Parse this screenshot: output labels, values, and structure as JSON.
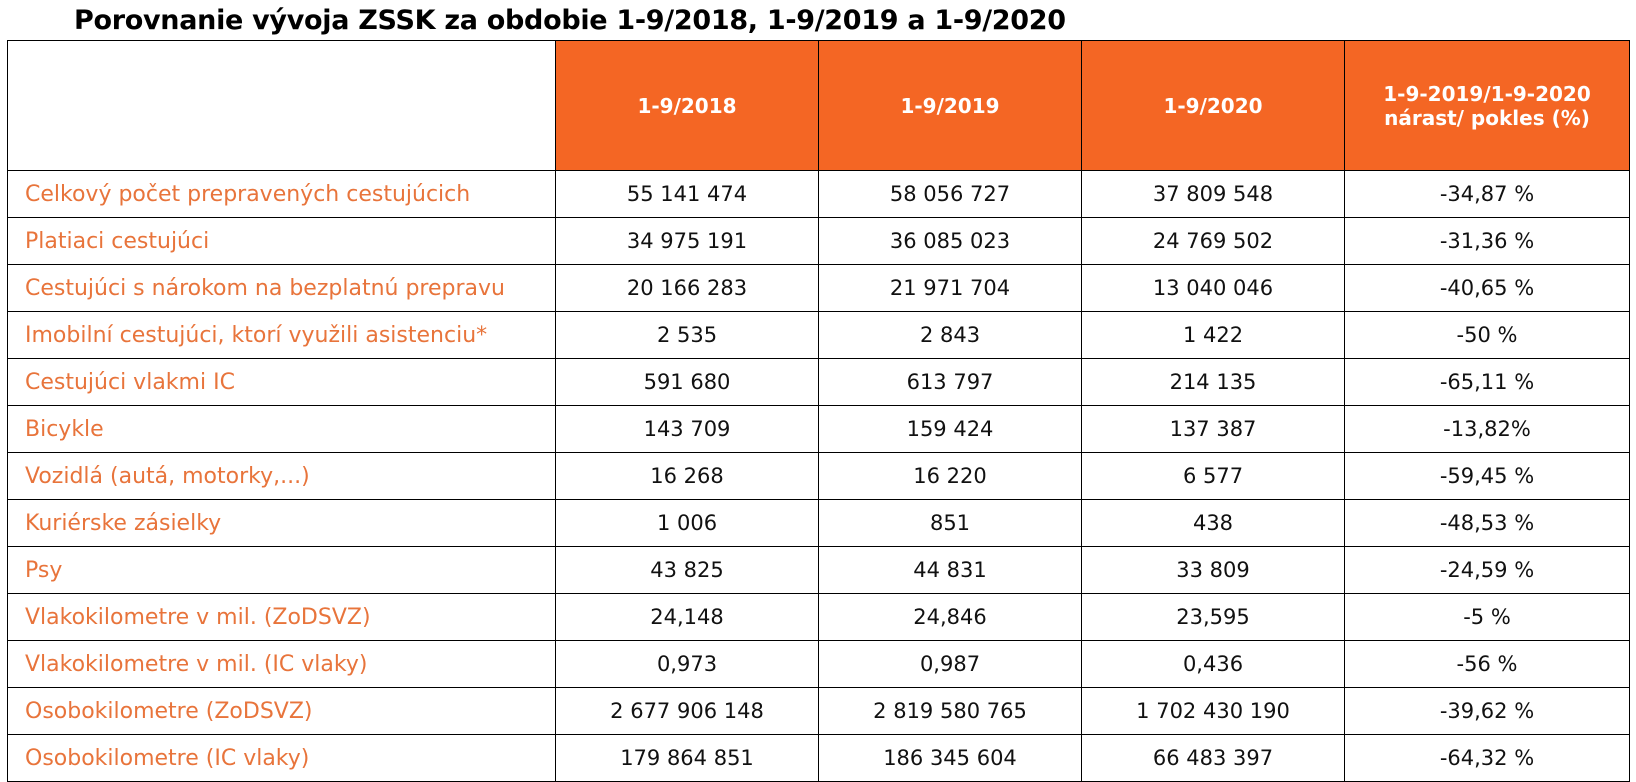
{
  "title": "Porovnanie vývoja ZSSK za obdobie 1-9/2018, 1-9/2019 a 1-9/2020",
  "colors": {
    "header_background": "#f46624",
    "header_text": "#ffffff",
    "label_text": "#e8743b",
    "value_text": "#111111"
  },
  "table": {
    "columns": {
      "corner": "",
      "y2018": "1-9/2018",
      "y2019": "1-9/2019",
      "y2020": "1-9/2020",
      "growth": "1-9-2019/1-9-2020 nárast/ pokles (%)"
    },
    "rows": [
      {
        "label": "Celkový počet prepravených cestujúcich",
        "v2018": "55 141 474",
        "v2019": "58 056 727",
        "v2020": "37 809 548",
        "change": "-34,87 %"
      },
      {
        "label": "Platiaci cestujúci",
        "v2018": "34 975 191",
        "v2019": "36 085 023",
        "v2020": "24 769 502",
        "change": "-31,36 %"
      },
      {
        "label": "Cestujúci s nárokom na bezplatnú prepravu",
        "v2018": "20 166 283",
        "v2019": "21 971 704",
        "v2020": "13 040 046",
        "change": "-40,65 %"
      },
      {
        "label": "Imobilní cestujúci, ktorí využili asistenciu*",
        "v2018": "2 535",
        "v2019": "2 843",
        "v2020": "1 422",
        "change": "-50 %"
      },
      {
        "label": "Cestujúci vlakmi IC",
        "v2018": "591 680",
        "v2019": "613 797",
        "v2020": "214 135",
        "change": "-65,11 %"
      },
      {
        "label": "Bicykle",
        "v2018": "143 709",
        "v2019": "159 424",
        "v2020": "137 387",
        "change": "-13,82%"
      },
      {
        "label": "Vozidlá (autá, motorky,...)",
        "v2018": "16 268",
        "v2019": "16 220",
        "v2020": "6 577",
        "change": "-59,45 %"
      },
      {
        "label": "Kuriérske zásielky",
        "v2018": "1 006",
        "v2019": "851",
        "v2020": "438",
        "change": "-48,53 %"
      },
      {
        "label": "Psy",
        "v2018": "43 825",
        "v2019": "44 831",
        "v2020": "33 809",
        "change": "-24,59 %"
      },
      {
        "label": "Vlakokilometre v mil. (ZoDSVZ)",
        "v2018": "24,148",
        "v2019": "24,846",
        "v2020": "23,595",
        "change": "-5 %"
      },
      {
        "label": "Vlakokilometre v mil. (IC vlaky)",
        "v2018": "0,973",
        "v2019": "0,987",
        "v2020": "0,436",
        "change": "-56 %"
      },
      {
        "label": "Osobokilometre (ZoDSVZ)",
        "v2018": "2 677 906 148",
        "v2019": "2 819 580 765",
        "v2020": "1 702 430 190",
        "change": "-39,62 %"
      },
      {
        "label": "Osobokilometre (IC vlaky)",
        "v2018": "179 864 851",
        "v2019": "186 345 604",
        "v2020": "66 483 397",
        "change": "-64,32 %"
      }
    ]
  }
}
